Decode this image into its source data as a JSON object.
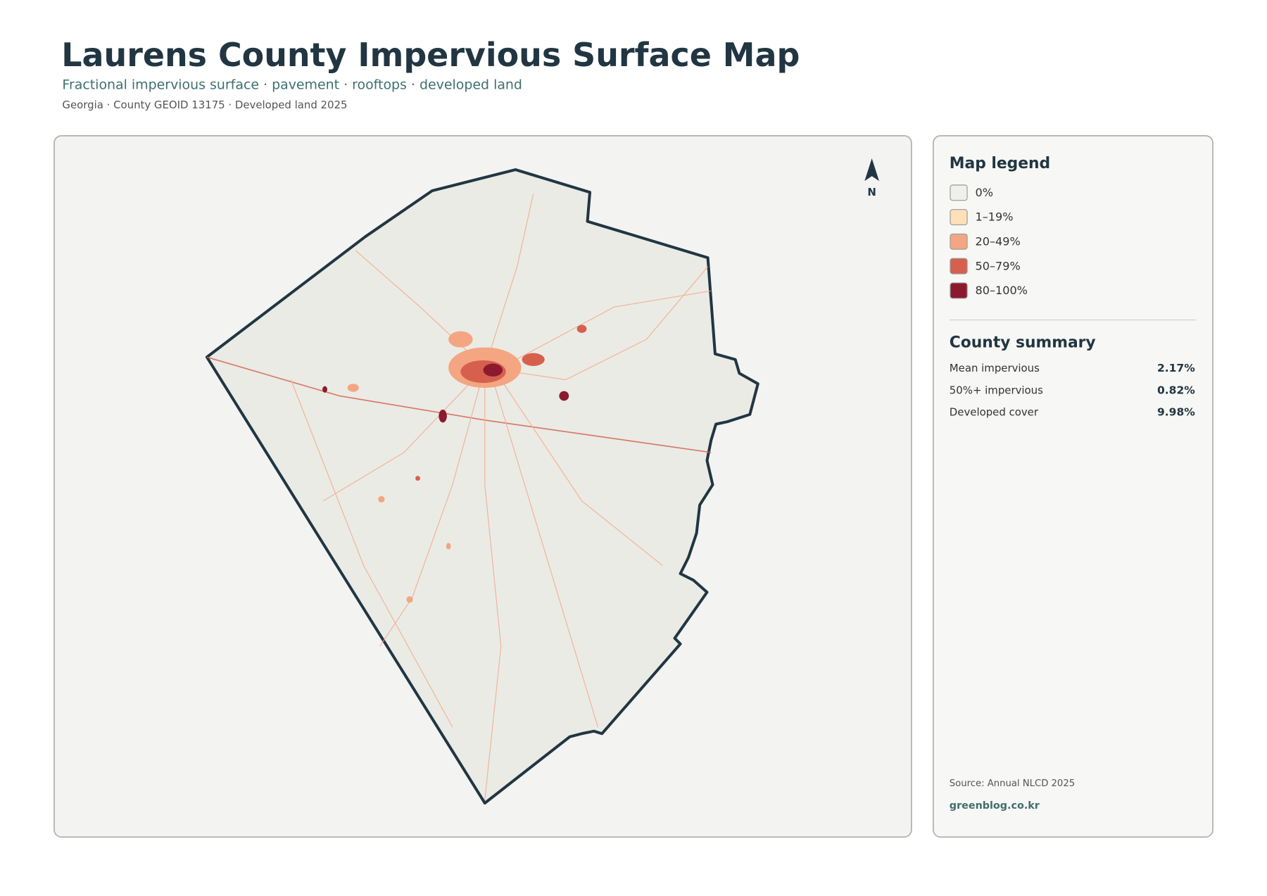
{
  "header": {
    "title": "Laurens County Impervious Surface Map",
    "subtitle": "Fractional impervious surface · pavement · rooftops · developed land",
    "meta": "Georgia · County GEOID 13175 · Developed land 2025"
  },
  "map": {
    "north_label": "N"
  },
  "legend": {
    "title": "Map legend",
    "items": [
      {
        "label": "0%",
        "color": "#efefeb"
      },
      {
        "label": "1–19%",
        "color": "#fde0b8"
      },
      {
        "label": "20–49%",
        "color": "#f4a582"
      },
      {
        "label": "50–79%",
        "color": "#d6604d"
      },
      {
        "label": "80–100%",
        "color": "#8c1a2e"
      }
    ]
  },
  "summary": {
    "title": "County summary",
    "rows": [
      {
        "label": "Mean impervious",
        "value": "2.17%"
      },
      {
        "label": "50%+ impervious",
        "value": "0.82%"
      },
      {
        "label": "Developed cover",
        "value": "9.98%"
      }
    ]
  },
  "footer": {
    "source": "Source: Annual NLCD 2025",
    "site": "greenblog.co.kr"
  }
}
